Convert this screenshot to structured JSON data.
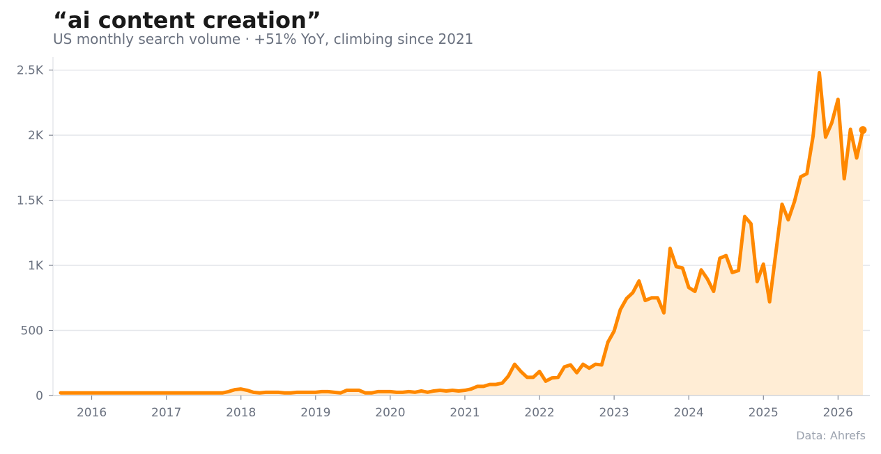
{
  "chart_data": {
    "type": "line",
    "title": "“ai content creation”",
    "subtitle": "US monthly search volume · +51% YoY, climbing since 2021",
    "source": "Data: Ahrefs",
    "xlabel": "",
    "ylabel": "",
    "xlim": [
      "2015-08",
      "2026-05"
    ],
    "ylim": [
      0,
      2600
    ],
    "yticks": [
      0,
      500,
      1000,
      1500,
      2000,
      2500
    ],
    "ytick_labels": [
      "0",
      "500",
      "1K",
      "1.5K",
      "2K",
      "2.5K"
    ],
    "xticks": [
      "2016-01",
      "2017-01",
      "2018-01",
      "2019-01",
      "2020-01",
      "2021-01",
      "2022-01",
      "2023-01",
      "2024-01",
      "2025-01",
      "2026-01"
    ],
    "xtick_labels": [
      "2016",
      "2017",
      "2018",
      "2019",
      "2020",
      "2021",
      "2022",
      "2023",
      "2024",
      "2025",
      "2026"
    ],
    "grid": "horizontal",
    "colors": {
      "line": "#ff8800",
      "fill": "#ffedd5"
    },
    "series": [
      {
        "name": "",
        "x": [
          "2015-08",
          "2015-09",
          "2015-10",
          "2015-11",
          "2015-12",
          "2016-01",
          "2016-02",
          "2016-03",
          "2016-04",
          "2016-05",
          "2016-06",
          "2016-07",
          "2016-08",
          "2016-09",
          "2016-10",
          "2016-11",
          "2016-12",
          "2017-01",
          "2017-02",
          "2017-03",
          "2017-04",
          "2017-05",
          "2017-06",
          "2017-07",
          "2017-08",
          "2017-09",
          "2017-10",
          "2017-11",
          "2017-12",
          "2018-01",
          "2018-02",
          "2018-03",
          "2018-04",
          "2018-05",
          "2018-06",
          "2018-07",
          "2018-08",
          "2018-09",
          "2018-10",
          "2018-11",
          "2018-12",
          "2019-01",
          "2019-02",
          "2019-03",
          "2019-04",
          "2019-05",
          "2019-06",
          "2019-07",
          "2019-08",
          "2019-09",
          "2019-10",
          "2019-11",
          "2019-12",
          "2020-01",
          "2020-02",
          "2020-03",
          "2020-04",
          "2020-05",
          "2020-06",
          "2020-07",
          "2020-08",
          "2020-09",
          "2020-10",
          "2020-11",
          "2020-12",
          "2021-01",
          "2021-02",
          "2021-03",
          "2021-04",
          "2021-05",
          "2021-06",
          "2021-07",
          "2021-08",
          "2021-09",
          "2021-10",
          "2021-11",
          "2021-12",
          "2022-01",
          "2022-02",
          "2022-03",
          "2022-04",
          "2022-05",
          "2022-06",
          "2022-07",
          "2022-08",
          "2022-09",
          "2022-10",
          "2022-11",
          "2022-12",
          "2023-01",
          "2023-02",
          "2023-03",
          "2023-04",
          "2023-05",
          "2023-06",
          "2023-07",
          "2023-08",
          "2023-09",
          "2023-10",
          "2023-11",
          "2023-12",
          "2024-01",
          "2024-02",
          "2024-03",
          "2024-04",
          "2024-05",
          "2024-06",
          "2024-07",
          "2024-08",
          "2024-09",
          "2024-10",
          "2024-11",
          "2024-12",
          "2025-01",
          "2025-02",
          "2025-03",
          "2025-04",
          "2025-05",
          "2025-06",
          "2025-07",
          "2025-08",
          "2025-09",
          "2025-10",
          "2025-11",
          "2025-12",
          "2026-01",
          "2026-02",
          "2026-03",
          "2026-04",
          "2026-05"
        ],
        "values": [
          20,
          20,
          20,
          20,
          20,
          20,
          20,
          20,
          20,
          20,
          20,
          20,
          20,
          20,
          20,
          20,
          20,
          20,
          20,
          20,
          20,
          20,
          20,
          20,
          20,
          20,
          20,
          30,
          45,
          50,
          40,
          25,
          20,
          25,
          25,
          25,
          20,
          20,
          25,
          25,
          25,
          25,
          30,
          30,
          25,
          20,
          40,
          40,
          40,
          20,
          20,
          30,
          30,
          30,
          25,
          25,
          30,
          25,
          35,
          25,
          35,
          40,
          35,
          40,
          35,
          40,
          50,
          70,
          70,
          85,
          85,
          95,
          150,
          240,
          185,
          140,
          140,
          185,
          110,
          135,
          140,
          220,
          235,
          175,
          240,
          210,
          240,
          235,
          410,
          495,
          660,
          745,
          790,
          880,
          730,
          750,
          750,
          635,
          1130,
          990,
          980,
          830,
          800,
          965,
          895,
          800,
          1055,
          1075,
          945,
          960,
          1375,
          1320,
          875,
          1010,
          720,
          1095,
          1470,
          1350,
          1490,
          1680,
          1705,
          1995,
          2480,
          1985,
          2095,
          2275,
          1665,
          2045,
          1825,
          2040
        ]
      }
    ]
  }
}
